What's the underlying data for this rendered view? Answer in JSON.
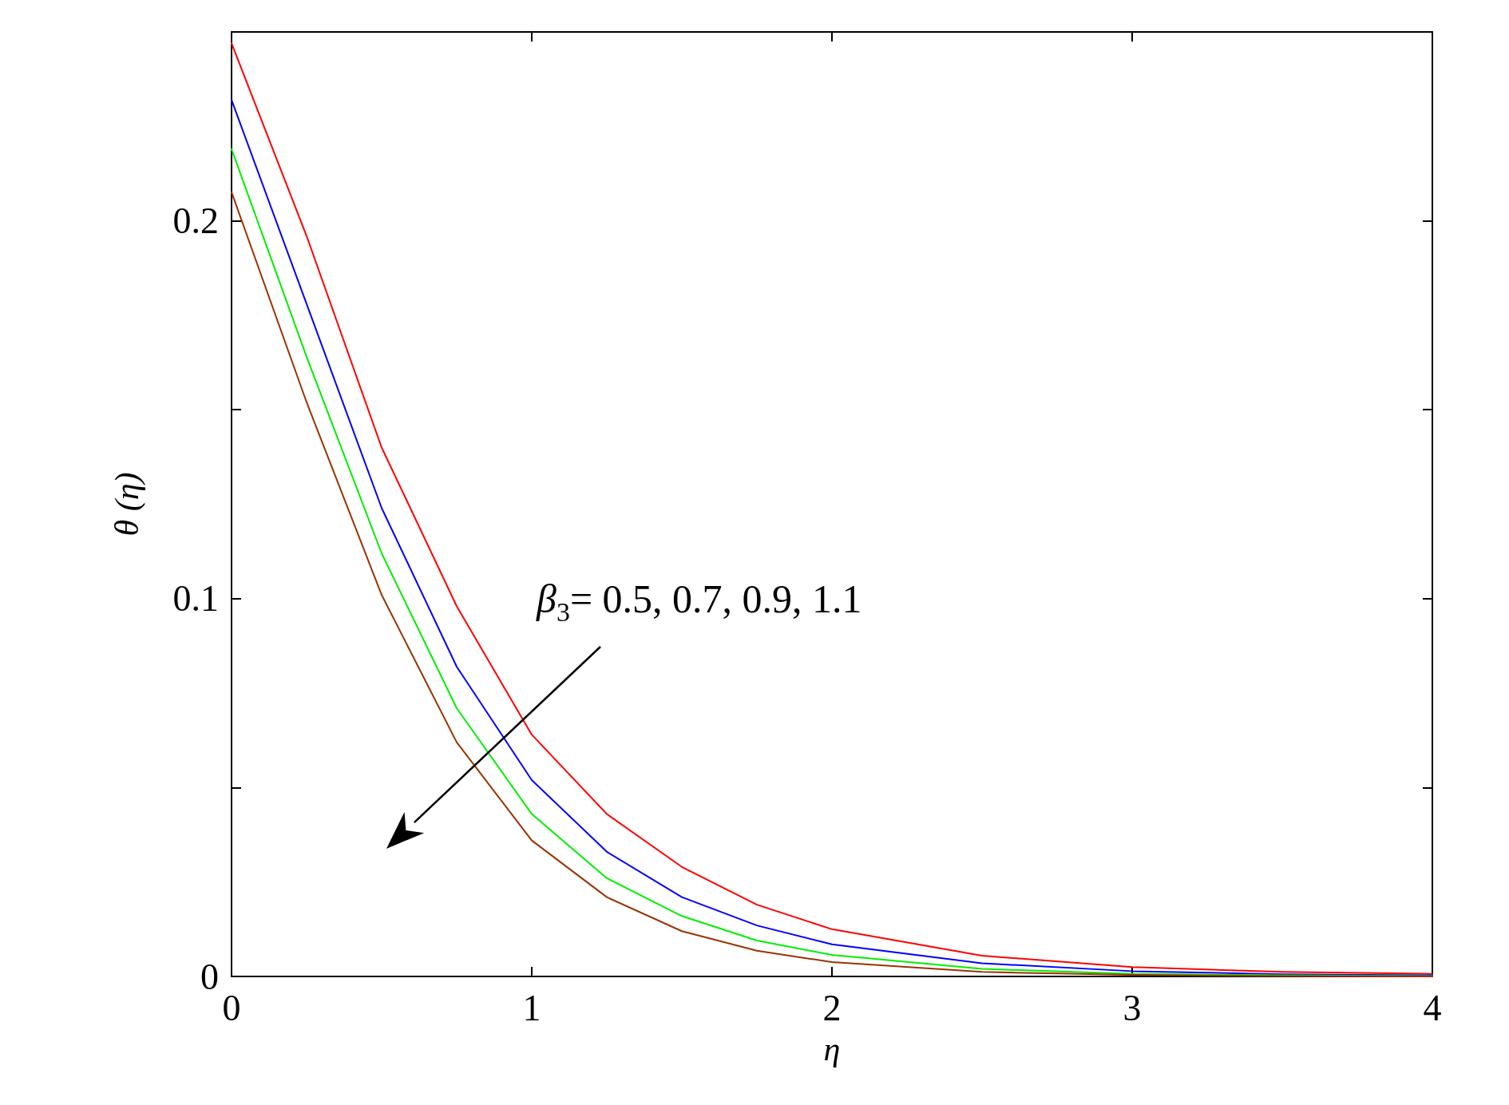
{
  "chart_data": {
    "type": "line",
    "xlabel": "η",
    "ylabel": "θ (η)",
    "xlim": [
      0,
      4
    ],
    "xticks": [
      0,
      1,
      2,
      3,
      4
    ],
    "ylim": [
      0,
      0.25
    ],
    "yticks": [
      0,
      {
        "value": 0.05,
        "label": null
      },
      0.1,
      {
        "value": 0.15,
        "label": null
      },
      0.2
    ],
    "grid": false,
    "marker": "none",
    "line_style": "solid",
    "x": [
      0,
      0.25,
      0.5,
      0.75,
      1,
      1.25,
      1.5,
      1.75,
      2,
      2.5,
      3,
      3.5,
      4
    ],
    "annotations": [
      "β$_{3}$= 0.5, 0.7, 0.9, 1.1"
    ],
    "series": [
      {
        "color": "#ff0000",
        "values": [
          0.247,
          0.196,
          0.14,
          0.098,
          0.064,
          0.043,
          0.029,
          0.019,
          0.0125,
          0.0055,
          0.0025,
          0.0012,
          0.0007
        ]
      },
      {
        "color": "#0000ff",
        "values": [
          0.232,
          0.178,
          0.124,
          0.082,
          0.052,
          0.033,
          0.021,
          0.0135,
          0.0085,
          0.0035,
          0.0014,
          0.0006,
          0.0003
        ]
      },
      {
        "color": "#00ee00",
        "values": [
          0.219,
          0.164,
          0.112,
          0.071,
          0.043,
          0.026,
          0.016,
          0.0095,
          0.0057,
          0.002,
          0.0007,
          0.0003,
          0.0001
        ]
      },
      {
        "color": "#993300",
        "values": [
          0.2076,
          0.152,
          0.101,
          0.062,
          0.036,
          0.021,
          0.012,
          0.0068,
          0.0038,
          0.0012,
          0.0004,
          0.0001,
          0
        ]
      }
    ]
  }
}
